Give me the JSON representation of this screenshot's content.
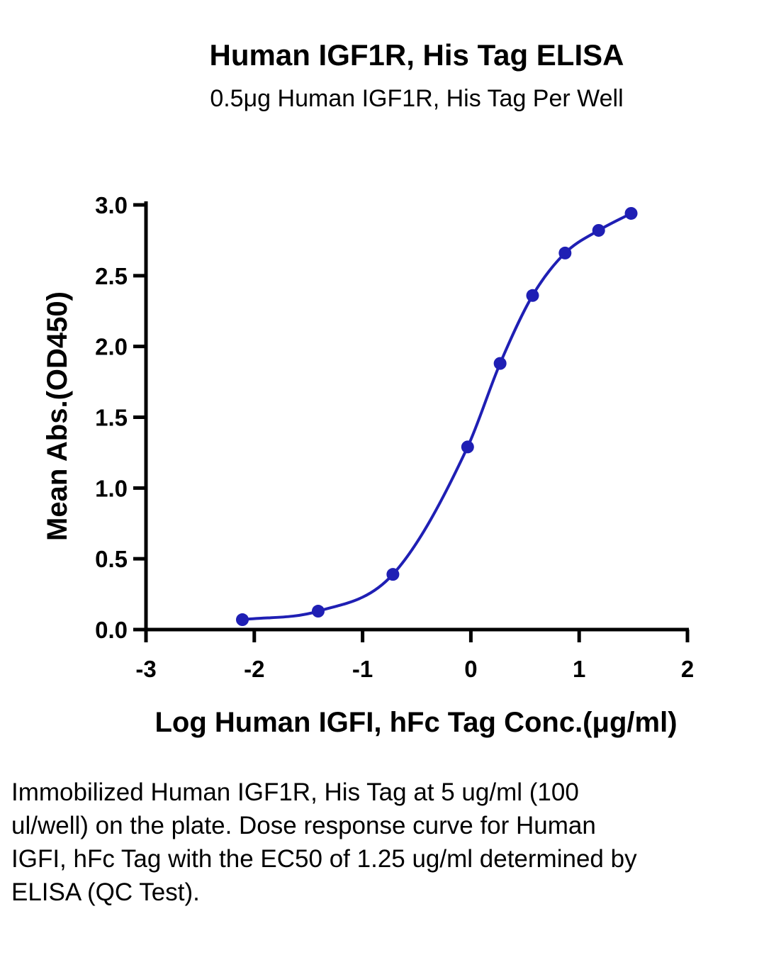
{
  "chart_data": {
    "type": "scatter",
    "title": "Human IGF1R, His Tag ELISA",
    "subtitle": "0.5μg Human IGF1R, His Tag Per Well",
    "xlabel": "Log Human IGFI, hFc Tag Conc.(μg/ml)",
    "ylabel": "Mean Abs.(OD450)",
    "xlim": [
      -3,
      2
    ],
    "ylim": [
      0,
      3
    ],
    "x_ticks": [
      "-3",
      "-2",
      "-1",
      "0",
      "1",
      "2"
    ],
    "y_ticks": [
      "0.0",
      "0.5",
      "1.0",
      "1.5",
      "2.0",
      "2.5",
      "3.0"
    ],
    "grid": false,
    "color": "#1f1fb4",
    "series": [
      {
        "x": [
          -2.11,
          -1.41,
          -0.72,
          -0.03,
          0.27,
          0.57,
          0.87,
          1.18,
          1.48
        ],
        "y": [
          0.07,
          0.13,
          0.39,
          1.29,
          1.88,
          2.36,
          2.66,
          2.82,
          2.94
        ],
        "fit": "sigmoidal dose-response curve"
      }
    ]
  },
  "caption": "Immobilized Human IGF1R, His Tag at 5 ug/ml (100 ul/well) on the plate. Dose response curve for Human IGFI, hFc Tag with the EC50 of 1.25 ug/ml determined by ELISA (QC Test)."
}
